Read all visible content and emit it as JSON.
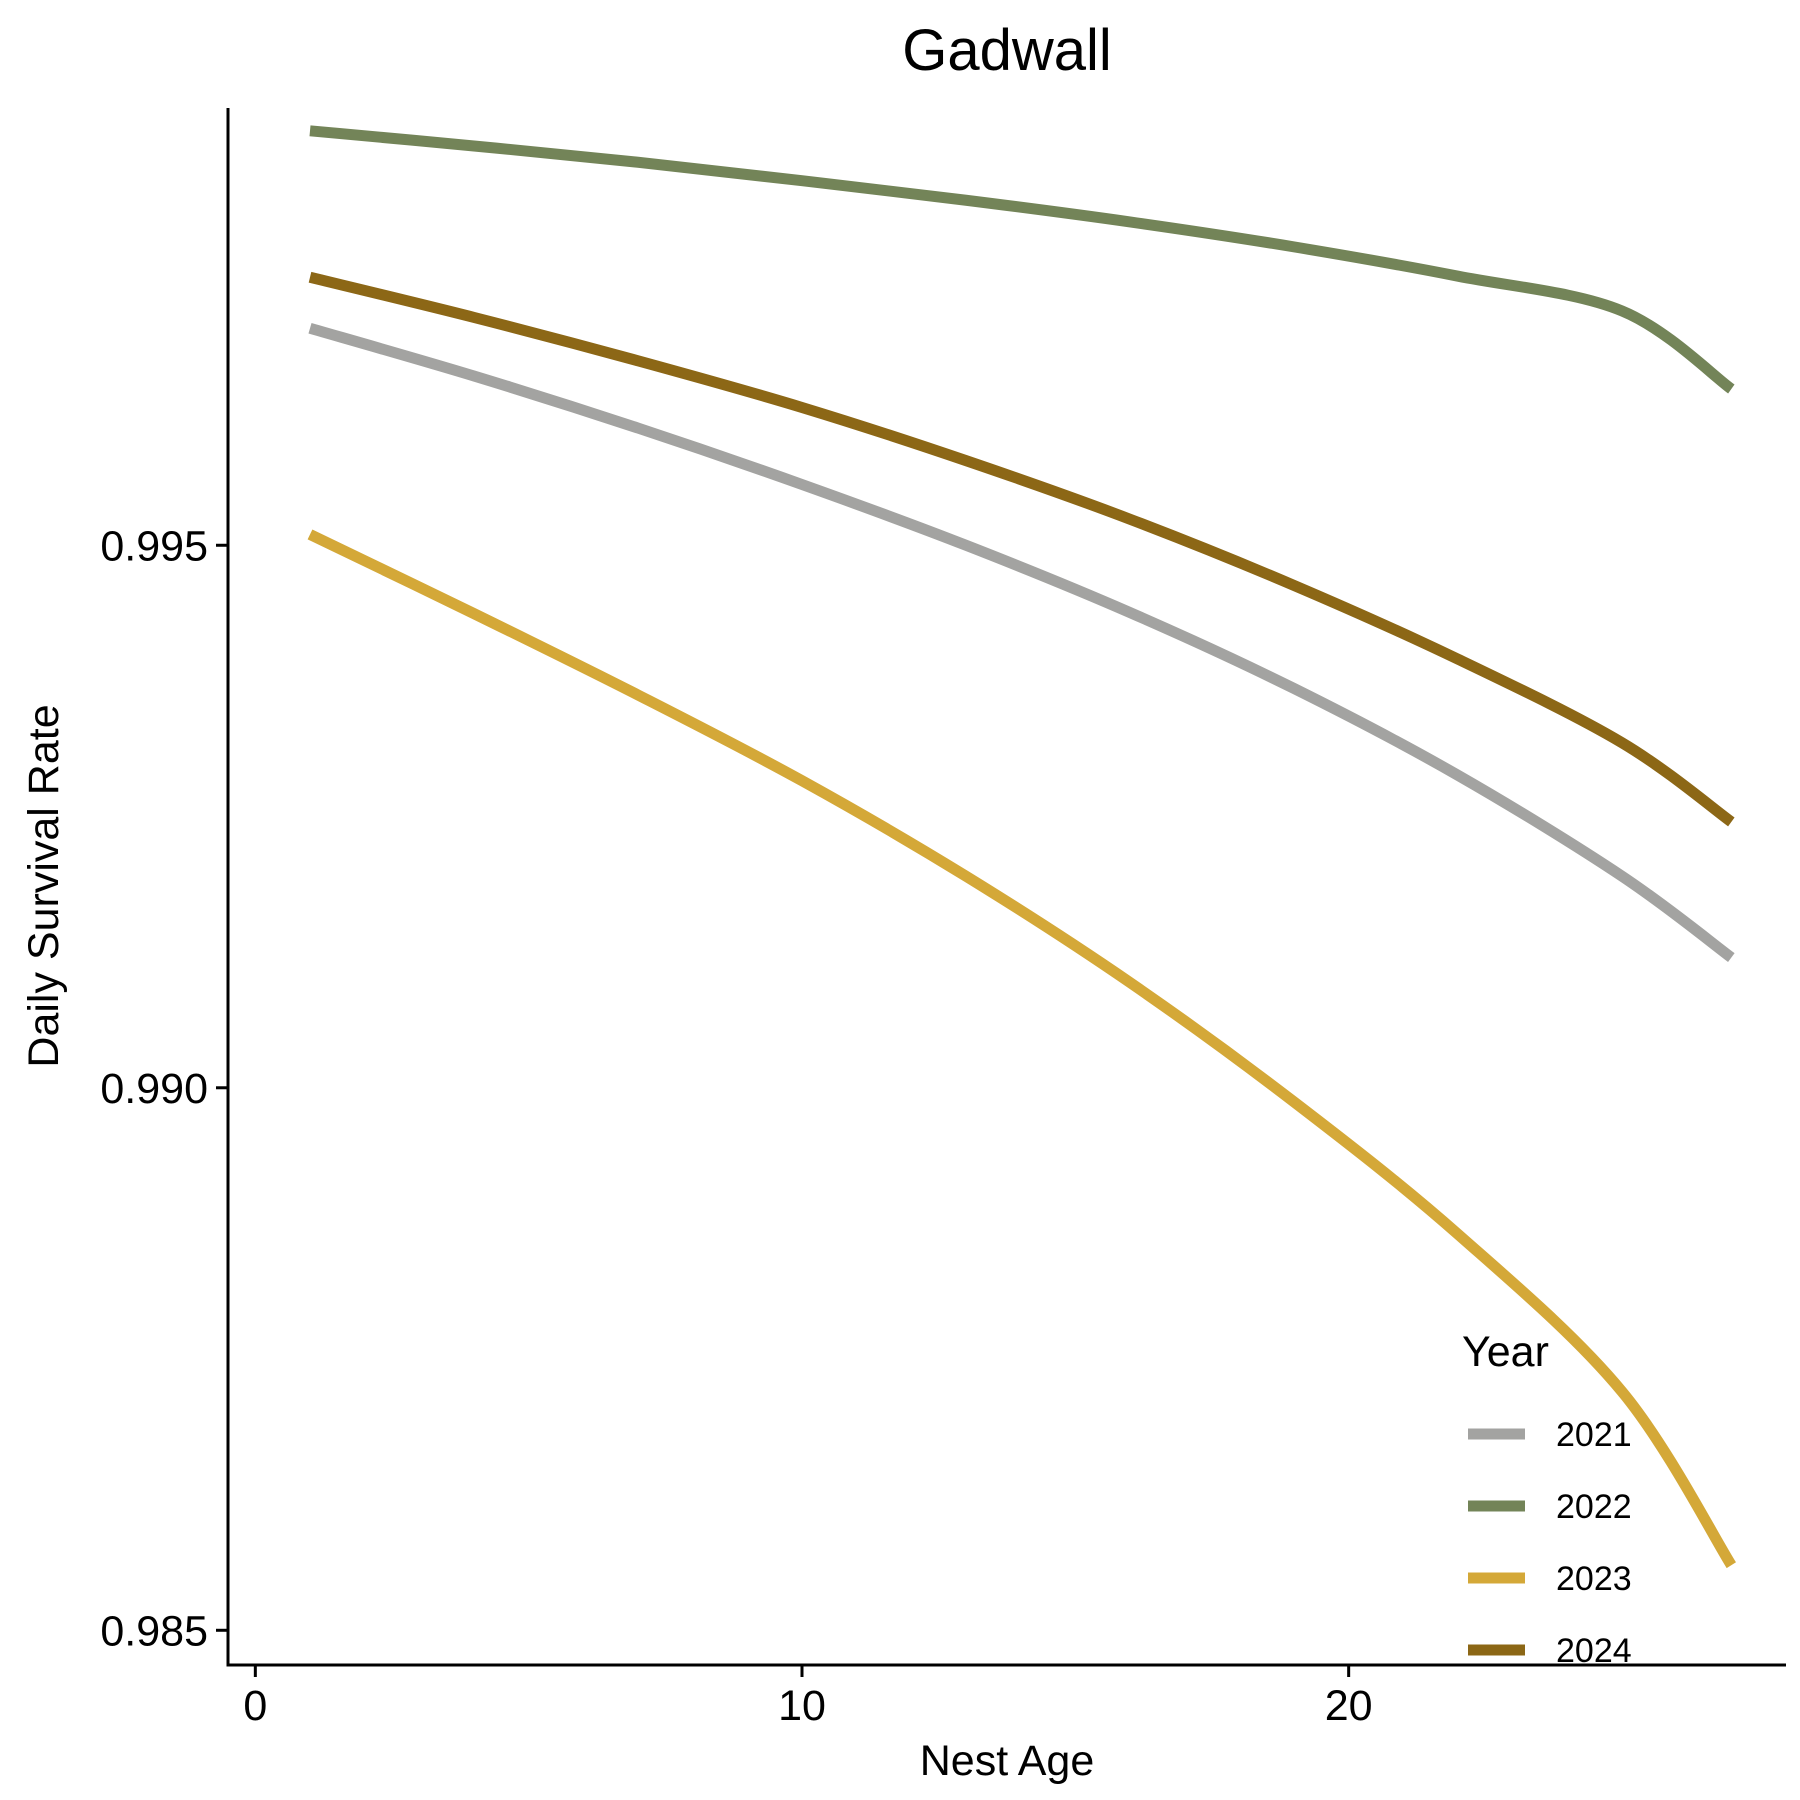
{
  "chart_data": {
    "type": "line",
    "title": "Gadwall",
    "xlabel": "Nest Age",
    "ylabel": "Daily Survival Rate",
    "xlim": [
      -0.5,
      28
    ],
    "ylim": [
      0.98468,
      0.99903
    ],
    "xticks": [
      0,
      10,
      20
    ],
    "xtick_labels": [
      "0",
      "10",
      "20"
    ],
    "yticks": [
      0.985,
      0.99,
      0.995
    ],
    "ytick_labels": [
      "0.985",
      "0.990",
      "0.995"
    ],
    "grid": false,
    "legend": {
      "title": "Year",
      "position": "bottom-right"
    },
    "x": [
      1,
      4,
      7,
      10,
      13,
      16,
      19,
      22,
      25,
      27
    ],
    "series": [
      {
        "name": "2021",
        "color": "#a3a3a1",
        "values": [
          0.997,
          0.99656,
          0.99608,
          0.99556,
          0.995,
          0.99438,
          0.99368,
          0.99288,
          0.99195,
          0.9912
        ]
      },
      {
        "name": "2022",
        "color": "#738458",
        "values": [
          0.99882,
          0.99868,
          0.99853,
          0.99836,
          0.99818,
          0.99798,
          0.99775,
          0.99748,
          0.99716,
          0.99644
        ]
      },
      {
        "name": "2023",
        "color": "#d4a838",
        "values": [
          0.9951,
          0.99437,
          0.99362,
          0.99283,
          0.99195,
          0.99097,
          0.98987,
          0.98865,
          0.9872,
          0.9856
        ]
      },
      {
        "name": "2024",
        "color": "#8c6716",
        "values": [
          0.99747,
          0.9971,
          0.9967,
          0.99627,
          0.99578,
          0.99524,
          0.99463,
          0.99395,
          0.99318,
          0.99245
        ]
      }
    ]
  }
}
